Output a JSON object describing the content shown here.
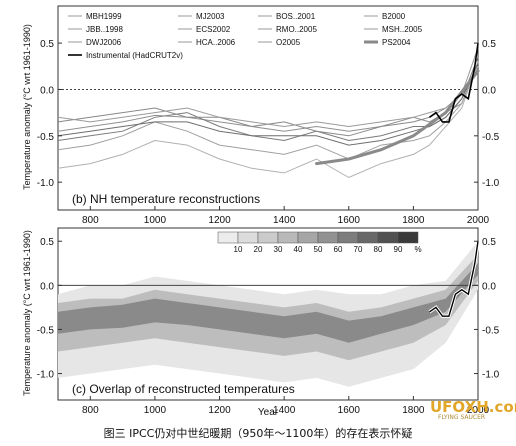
{
  "caption": "图三  IPCC仍对中世纪暖期（950年～1100年）的存在表示怀疑",
  "watermark": {
    "text": "UFOXH.com",
    "sub": "FLYING SAUCER",
    "color": "#e2a628"
  },
  "chart_data": [
    {
      "type": "line",
      "panel_label": "(b) NH temperature reconstructions",
      "xlabel": "",
      "ylabel": "Temperature anomaly (°C wrt 1961-1990)",
      "xlim": [
        700,
        2000
      ],
      "ylim": [
        -1.3,
        0.9
      ],
      "xticks": [
        800,
        1000,
        1200,
        1400,
        1600,
        1800,
        2000
      ],
      "yticks": [
        -1.0,
        -0.5,
        0.0,
        0.5
      ],
      "ytick_labels": [
        "-1.0",
        "-0.5",
        "0.0",
        "0.5"
      ],
      "reference_line": 0.0,
      "legend": {
        "placement": "top",
        "entries": [
          {
            "name": "MBH1999",
            "style": "thin-gray"
          },
          {
            "name": "MJ2003",
            "style": "thin-gray"
          },
          {
            "name": "BOS..2001",
            "style": "thin-gray"
          },
          {
            "name": "B2000",
            "style": "thin-gray"
          },
          {
            "name": "JBB..1998",
            "style": "thin-gray"
          },
          {
            "name": "ECS2002",
            "style": "thin-gray"
          },
          {
            "name": "RMO..2005",
            "style": "thin-gray"
          },
          {
            "name": "MSH..2005",
            "style": "thin-gray"
          },
          {
            "name": "DWJ2006",
            "style": "thin-gray"
          },
          {
            "name": "HCA..2006",
            "style": "thin-gray"
          },
          {
            "name": "O2005",
            "style": "thin-gray"
          },
          {
            "name": "PS2004",
            "style": "thick-gray"
          },
          {
            "name": "Instrumental (HadCRUT2v)",
            "style": "black"
          }
        ]
      },
      "series": [
        {
          "x": [
            700,
            800,
            900,
            1000,
            1100,
            1200,
            1300,
            1400,
            1500,
            1600,
            1700,
            1800,
            1850,
            1900,
            1950,
            2000
          ],
          "values": [
            -0.45,
            -0.4,
            -0.35,
            -0.28,
            -0.3,
            -0.35,
            -0.4,
            -0.45,
            -0.4,
            -0.45,
            -0.4,
            -0.3,
            -0.35,
            -0.25,
            -0.15,
            0.3
          ],
          "color": "#909090"
        },
        {
          "x": [
            700,
            800,
            900,
            1000,
            1100,
            1200,
            1300,
            1400,
            1500,
            1600,
            1700,
            1800,
            1850,
            1900,
            1950,
            2000
          ],
          "values": [
            -0.55,
            -0.5,
            -0.45,
            -0.3,
            -0.25,
            -0.4,
            -0.5,
            -0.55,
            -0.45,
            -0.55,
            -0.5,
            -0.4,
            -0.4,
            -0.3,
            -0.1,
            0.35
          ],
          "color": "#7a7a7a"
        },
        {
          "x": [
            700,
            800,
            900,
            1000,
            1100,
            1200,
            1300,
            1400,
            1500,
            1600,
            1700,
            1800,
            1850,
            1900,
            1950,
            2000
          ],
          "values": [
            -0.65,
            -0.6,
            -0.5,
            -0.35,
            -0.45,
            -0.6,
            -0.65,
            -0.7,
            -0.6,
            -0.75,
            -0.6,
            -0.55,
            -0.5,
            -0.35,
            -0.15,
            0.25
          ],
          "color": "#a0a0a0"
        },
        {
          "x": [
            700,
            800,
            900,
            1000,
            1100,
            1200,
            1300,
            1400,
            1500,
            1600,
            1700,
            1800,
            1850,
            1900,
            1950,
            2000
          ],
          "values": [
            -0.35,
            -0.3,
            -0.25,
            -0.2,
            -0.3,
            -0.3,
            -0.4,
            -0.35,
            -0.45,
            -0.5,
            -0.4,
            -0.35,
            -0.3,
            -0.2,
            -0.05,
            0.2
          ],
          "color": "#888888"
        },
        {
          "x": [
            700,
            800,
            900,
            1000,
            1100,
            1200,
            1300,
            1400,
            1500,
            1600,
            1700,
            1800,
            1850,
            1900,
            1950,
            2000
          ],
          "values": [
            -0.85,
            -0.8,
            -0.7,
            -0.55,
            -0.6,
            -0.75,
            -0.85,
            -0.9,
            -0.75,
            -0.95,
            -0.8,
            -0.7,
            -0.6,
            -0.4,
            -0.2,
            0.3
          ],
          "color": "#b0b0b0"
        },
        {
          "x": [
            700,
            800,
            900,
            1000,
            1100,
            1200,
            1300,
            1400,
            1500,
            1600,
            1700,
            1800,
            1850,
            1900,
            1950,
            2000
          ],
          "values": [
            -0.5,
            -0.45,
            -0.4,
            -0.35,
            -0.35,
            -0.45,
            -0.5,
            -0.5,
            -0.5,
            -0.6,
            -0.55,
            -0.45,
            -0.4,
            -0.3,
            -0.1,
            0.28
          ],
          "color": "#6e6e6e"
        },
        {
          "x": [
            700,
            800,
            900,
            1000,
            1100,
            1200,
            1300,
            1400,
            1500,
            1600,
            1700,
            1800,
            1850,
            1900,
            1950,
            2000
          ],
          "values": [
            -0.3,
            -0.35,
            -0.3,
            -0.25,
            -0.2,
            -0.3,
            -0.35,
            -0.4,
            -0.35,
            -0.4,
            -0.35,
            -0.3,
            -0.25,
            -0.2,
            -0.05,
            0.45
          ],
          "color": "#9a9a9a"
        }
      ],
      "thick_series": {
        "name": "PS2004",
        "x": [
          1500,
          1600,
          1700,
          1800,
          1900,
          2000
        ],
        "values": [
          -0.8,
          -0.75,
          -0.65,
          -0.5,
          -0.25,
          0.2
        ],
        "color": "#8a8a8a"
      },
      "instrumental": {
        "name": "Instrumental (HadCRUT2v)",
        "x": [
          1850,
          1870,
          1890,
          1910,
          1930,
          1950,
          1970,
          1990,
          2000
        ],
        "values": [
          -0.3,
          -0.25,
          -0.35,
          -0.35,
          -0.1,
          -0.05,
          -0.1,
          0.25,
          0.5
        ],
        "color": "#000000"
      }
    },
    {
      "type": "area",
      "panel_label": "(c) Overlap of reconstructed temperatures",
      "xlabel": "Year",
      "ylabel": "Temperature anomaly (°C wrt 1961-1990)",
      "xlim": [
        700,
        2000
      ],
      "ylim": [
        -1.3,
        0.65
      ],
      "xticks": [
        800,
        1000,
        1200,
        1400,
        1600,
        1800,
        2000
      ],
      "yticks": [
        -1.0,
        -0.5,
        0.0,
        0.5
      ],
      "ytick_labels": [
        "-1.0",
        "-0.5",
        "0.0",
        "0.5"
      ],
      "reference_line": 0.0,
      "colorbar": {
        "placement": "top-center",
        "ticks": [
          "10",
          "20",
          "30",
          "40",
          "50",
          "60",
          "70",
          "80",
          "90",
          "%"
        ],
        "colors": [
          "#ececec",
          "#dcdcdc",
          "#cbcbcb",
          "#b9b9b9",
          "#a6a6a6",
          "#929292",
          "#7d7d7d",
          "#686868",
          "#515151",
          "#3a3a3a"
        ]
      },
      "bands": [
        {
          "level": "10%",
          "color": "#e6e6e6",
          "x": [
            700,
            800,
            900,
            1000,
            1100,
            1200,
            1300,
            1400,
            1500,
            1600,
            1700,
            1800,
            1900,
            2000
          ],
          "upper": [
            -0.1,
            0.0,
            0.0,
            0.1,
            0.05,
            0.0,
            -0.05,
            -0.1,
            -0.05,
            -0.1,
            -0.1,
            0.0,
            0.05,
            0.5
          ],
          "lower": [
            -1.05,
            -1.0,
            -0.95,
            -0.9,
            -0.95,
            -1.0,
            -1.05,
            -1.1,
            -1.05,
            -1.15,
            -1.05,
            -0.95,
            -0.65,
            -0.05
          ]
        },
        {
          "level": "40%",
          "color": "#bdbdbd",
          "x": [
            700,
            800,
            900,
            1000,
            1100,
            1200,
            1300,
            1400,
            1500,
            1600,
            1700,
            1800,
            1900,
            2000
          ],
          "upper": [
            -0.2,
            -0.15,
            -0.15,
            -0.05,
            -0.1,
            -0.15,
            -0.2,
            -0.25,
            -0.2,
            -0.3,
            -0.25,
            -0.15,
            -0.05,
            0.35
          ],
          "lower": [
            -0.75,
            -0.7,
            -0.65,
            -0.6,
            -0.65,
            -0.7,
            -0.75,
            -0.8,
            -0.75,
            -0.85,
            -0.75,
            -0.65,
            -0.45,
            0.05
          ]
        },
        {
          "level": "70%",
          "color": "#8a8a8a",
          "x": [
            700,
            800,
            900,
            1000,
            1100,
            1200,
            1300,
            1400,
            1500,
            1600,
            1700,
            1800,
            1900,
            2000
          ],
          "upper": [
            -0.3,
            -0.25,
            -0.22,
            -0.15,
            -0.2,
            -0.25,
            -0.3,
            -0.35,
            -0.3,
            -0.4,
            -0.35,
            -0.25,
            -0.15,
            0.25
          ],
          "lower": [
            -0.55,
            -0.5,
            -0.48,
            -0.42,
            -0.45,
            -0.5,
            -0.55,
            -0.6,
            -0.55,
            -0.65,
            -0.55,
            -0.45,
            -0.3,
            0.12
          ]
        }
      ],
      "instrumental": {
        "x": [
          1850,
          1870,
          1890,
          1910,
          1930,
          1950,
          1970,
          1990,
          2000
        ],
        "values": [
          -0.3,
          -0.25,
          -0.35,
          -0.35,
          -0.1,
          -0.05,
          -0.1,
          0.25,
          0.5
        ],
        "color": "#000000"
      }
    }
  ]
}
